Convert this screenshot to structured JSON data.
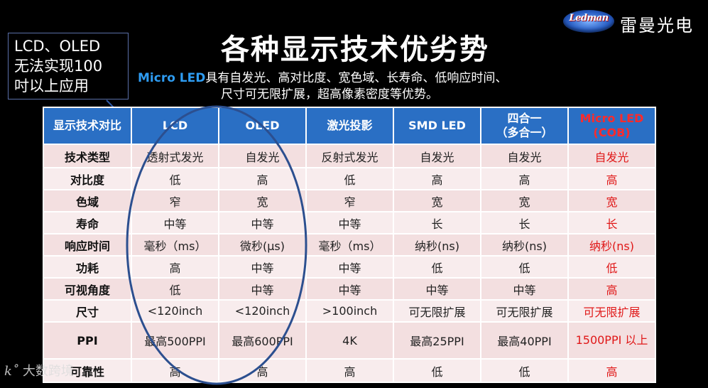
{
  "logo": {
    "emblem_text": "Ledman",
    "cn_name": "雷曼光电"
  },
  "callout": {
    "lines": [
      "LCD、OLED",
      "无法实现100",
      "吋以上应用"
    ]
  },
  "title": "各种显示技术优劣势",
  "subtitle": {
    "highlight": "Micro LED",
    "line1_rest": "具有自发光、高对比度、宽色域、长寿命、低响应时间、",
    "line2": "尺寸可无限扩展，超高像素密度等优势。"
  },
  "table": {
    "headers": [
      "显示技术对比",
      "LCD",
      "OLED",
      "激光投影",
      "SMD LED",
      "四合一\n（多合一）",
      "Micro LED\n(COB)"
    ],
    "rows": [
      [
        "技术类型",
        "透射式发光",
        "自发光",
        "反射式发光",
        "自发光",
        "自发光",
        "自发光"
      ],
      [
        "对比度",
        "低",
        "高",
        "低",
        "高",
        "高",
        "高"
      ],
      [
        "色域",
        "窄",
        "宽",
        "窄",
        "宽",
        "宽",
        "宽"
      ],
      [
        "寿命",
        "中等",
        "中等",
        "中等",
        "长",
        "长",
        "长"
      ],
      [
        "响应时间",
        "毫秒（ms）",
        "微秒(μs)",
        "毫秒（ms）",
        "纳秒(ns)",
        "纳秒(ns)",
        "纳秒(ns)"
      ],
      [
        "功耗",
        "高",
        "中等",
        "中等",
        "低",
        "低",
        "低"
      ],
      [
        "可视角度",
        "低",
        "中等",
        "中等",
        "中等",
        "中等",
        "高"
      ],
      [
        "尺寸",
        "<120inch",
        "<120inch",
        ">100inch",
        "可无限扩展",
        "可无限扩展",
        "可无限扩展"
      ],
      [
        "PPI",
        "最高500PPI",
        "最高600PPI",
        "4K",
        "最高25PPI",
        "最高40PPI",
        "1500PPI 以上"
      ],
      [
        "可靠性",
        "高",
        "高",
        "高",
        "低",
        "低",
        "高"
      ]
    ]
  },
  "watermark": {
    "mark": "k˚",
    "text": "大数跨境"
  },
  "colors": {
    "header_bg": "#2a6fc4",
    "highlight_red": "#e01818",
    "subtitle_blue": "#2e9cf2",
    "row_bg": "#f3dfe0"
  }
}
